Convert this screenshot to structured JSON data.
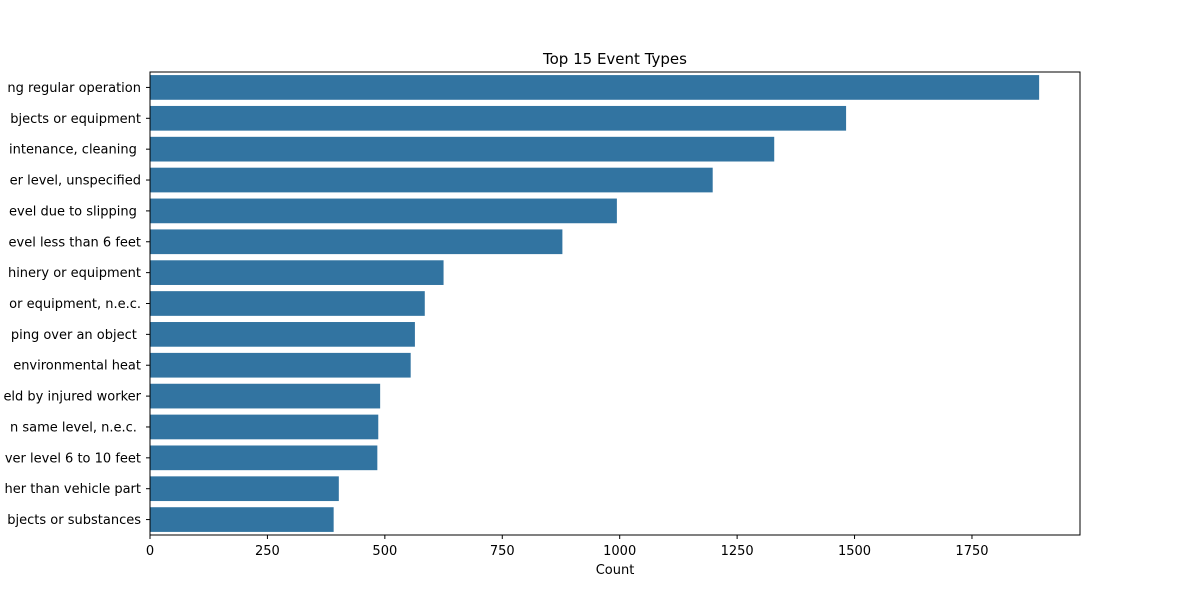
{
  "chart_data": {
    "type": "bar",
    "orientation": "horizontal",
    "title": "Top 15 Event Types",
    "xlabel": "Count",
    "ylabel": "",
    "xlim": [
      0,
      1980
    ],
    "xticks": [
      0,
      250,
      500,
      750,
      1000,
      1250,
      1500,
      1750
    ],
    "xtick_labels": [
      "0",
      "250",
      "500",
      "750",
      "1000",
      "1250",
      "1500",
      "1750"
    ],
    "grid": false,
    "categories": [
      "ng regular operation",
      "bjects or equipment",
      "intenance, cleaning ",
      "er level, unspecified",
      "evel due to slipping ",
      "evel less than 6 feet",
      "hinery or equipment",
      "or equipment, n.e.c.",
      "ping over an object ",
      " environmental heat",
      "eld by injured worker",
      "n same level, n.e.c. ",
      "ver level 6 to 10 feet",
      "her than vehicle part",
      "bjects or substances"
    ],
    "values": [
      1893,
      1482,
      1329,
      1198,
      994,
      878,
      625,
      585,
      564,
      555,
      490,
      486,
      484,
      402,
      391
    ],
    "bar_color": "#3274a1"
  }
}
